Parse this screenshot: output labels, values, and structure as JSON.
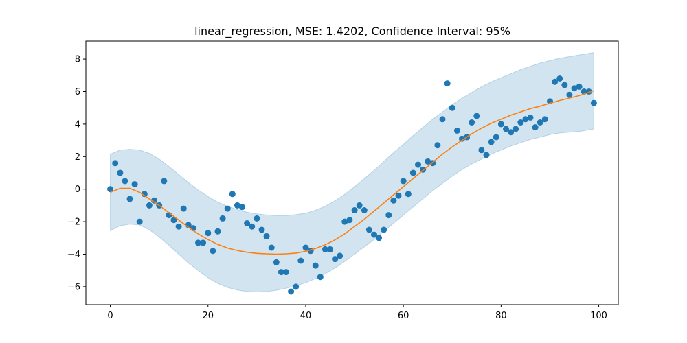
{
  "chart_data": {
    "type": "scatter",
    "title": "linear_regression, MSE: 1.4202, Confidence Interval: 95%",
    "xlabel": "",
    "ylabel": "",
    "xlim": [
      -5,
      104
    ],
    "ylim": [
      -7.1,
      9.1
    ],
    "x_ticks": [
      0,
      20,
      40,
      60,
      80,
      100
    ],
    "y_ticks": [
      -6,
      -4,
      -2,
      0,
      2,
      4,
      6,
      8
    ],
    "grid": false,
    "legend": "none",
    "colors": {
      "points": "#1f77b4",
      "fit": "#ff7f0e",
      "band": "#1f77b4"
    },
    "band_opacity": 0.2,
    "scatter": {
      "x": [
        0,
        1,
        2,
        3,
        4,
        5,
        6,
        7,
        8,
        9,
        10,
        11,
        12,
        13,
        14,
        15,
        16,
        17,
        18,
        19,
        20,
        21,
        22,
        23,
        24,
        25,
        26,
        27,
        28,
        29,
        30,
        31,
        32,
        33,
        34,
        35,
        36,
        37,
        38,
        39,
        40,
        41,
        42,
        43,
        44,
        45,
        46,
        47,
        48,
        49,
        50,
        51,
        52,
        53,
        54,
        55,
        56,
        57,
        58,
        59,
        60,
        61,
        62,
        63,
        64,
        65,
        66,
        67,
        68,
        69,
        70,
        71,
        72,
        73,
        74,
        75,
        76,
        77,
        78,
        79,
        80,
        81,
        82,
        83,
        84,
        85,
        86,
        87,
        88,
        89,
        90,
        91,
        92,
        93,
        94,
        95,
        96,
        97,
        98,
        99
      ],
      "y": [
        0.0,
        1.6,
        1.0,
        0.5,
        -0.6,
        0.3,
        -2.0,
        -0.3,
        -1.0,
        -0.7,
        -1.0,
        0.5,
        -1.6,
        -1.9,
        -2.3,
        -1.2,
        -2.2,
        -2.4,
        -3.3,
        -3.3,
        -2.7,
        -3.8,
        -2.6,
        -1.8,
        -1.2,
        -0.3,
        -1.0,
        -1.1,
        -2.1,
        -2.3,
        -1.8,
        -2.5,
        -2.9,
        -3.6,
        -4.5,
        -5.1,
        -5.1,
        -6.3,
        -6.0,
        -4.4,
        -3.6,
        -3.8,
        -4.7,
        -5.4,
        -3.7,
        -3.7,
        -4.3,
        -4.1,
        -2.0,
        -1.9,
        -1.3,
        -1.0,
        -1.3,
        -2.5,
        -2.8,
        -3.0,
        -2.5,
        -1.6,
        -0.7,
        -0.4,
        0.5,
        -0.3,
        1.0,
        1.5,
        1.2,
        1.7,
        1.6,
        2.7,
        4.3,
        6.5,
        5.0,
        3.6,
        3.1,
        3.2,
        4.1,
        4.5,
        2.4,
        2.1,
        2.9,
        3.2,
        4.0,
        3.7,
        3.5,
        3.7,
        4.1,
        4.3,
        4.4,
        3.8,
        4.1,
        4.3,
        5.4,
        6.6,
        6.8,
        6.4,
        5.8,
        6.2,
        6.3,
        6.0,
        6.0,
        5.3
      ]
    },
    "fit": {
      "x": [
        0,
        2,
        4,
        6,
        8,
        10,
        12,
        14,
        16,
        18,
        20,
        22,
        24,
        26,
        28,
        30,
        32,
        34,
        36,
        38,
        40,
        42,
        44,
        46,
        48,
        50,
        52,
        54,
        56,
        58,
        60,
        62,
        64,
        66,
        68,
        70,
        72,
        74,
        76,
        78,
        80,
        82,
        84,
        86,
        88,
        90,
        92,
        94,
        96,
        98,
        99
      ],
      "y": [
        -0.2,
        0.05,
        0.05,
        -0.2,
        -0.6,
        -1.0,
        -1.45,
        -1.9,
        -2.35,
        -2.75,
        -3.1,
        -3.4,
        -3.62,
        -3.77,
        -3.88,
        -3.95,
        -3.98,
        -4.0,
        -3.98,
        -3.93,
        -3.82,
        -3.65,
        -3.42,
        -3.12,
        -2.75,
        -2.3,
        -1.85,
        -1.35,
        -0.85,
        -0.35,
        0.15,
        0.65,
        1.15,
        1.65,
        2.15,
        2.6,
        3.0,
        3.4,
        3.75,
        4.05,
        4.3,
        4.55,
        4.75,
        4.95,
        5.1,
        5.28,
        5.45,
        5.6,
        5.75,
        5.95,
        6.05
      ]
    },
    "band": {
      "x": [
        0,
        2,
        4,
        6,
        8,
        10,
        12,
        14,
        16,
        18,
        20,
        22,
        24,
        26,
        28,
        30,
        32,
        34,
        36,
        38,
        40,
        42,
        44,
        46,
        48,
        50,
        52,
        54,
        56,
        58,
        60,
        62,
        64,
        66,
        68,
        70,
        72,
        74,
        76,
        78,
        80,
        82,
        84,
        86,
        88,
        90,
        92,
        94,
        96,
        98,
        99
      ],
      "lower": [
        -2.55,
        -2.25,
        -2.15,
        -2.2,
        -2.5,
        -2.95,
        -3.45,
        -4.0,
        -4.55,
        -5.0,
        -5.45,
        -5.8,
        -6.05,
        -6.2,
        -6.3,
        -6.32,
        -6.3,
        -6.22,
        -6.1,
        -5.95,
        -5.75,
        -5.5,
        -5.2,
        -4.85,
        -4.45,
        -4.0,
        -3.55,
        -3.1,
        -2.6,
        -2.1,
        -1.6,
        -1.1,
        -0.6,
        -0.1,
        0.35,
        0.8,
        1.2,
        1.55,
        1.85,
        2.15,
        2.4,
        2.65,
        2.85,
        3.05,
        3.2,
        3.35,
        3.45,
        3.5,
        3.55,
        3.65,
        3.7
      ],
      "upper": [
        2.15,
        2.4,
        2.45,
        2.4,
        2.2,
        1.85,
        1.4,
        0.9,
        0.4,
        -0.05,
        -0.45,
        -0.8,
        -1.05,
        -1.25,
        -1.42,
        -1.52,
        -1.58,
        -1.62,
        -1.62,
        -1.57,
        -1.48,
        -1.3,
        -1.05,
        -0.72,
        -0.32,
        0.15,
        0.65,
        1.15,
        1.7,
        2.25,
        2.75,
        3.3,
        3.8,
        4.3,
        4.75,
        5.2,
        5.6,
        5.95,
        6.3,
        6.6,
        6.85,
        7.1,
        7.35,
        7.55,
        7.75,
        7.9,
        8.05,
        8.15,
        8.25,
        8.35,
        8.4
      ]
    }
  }
}
